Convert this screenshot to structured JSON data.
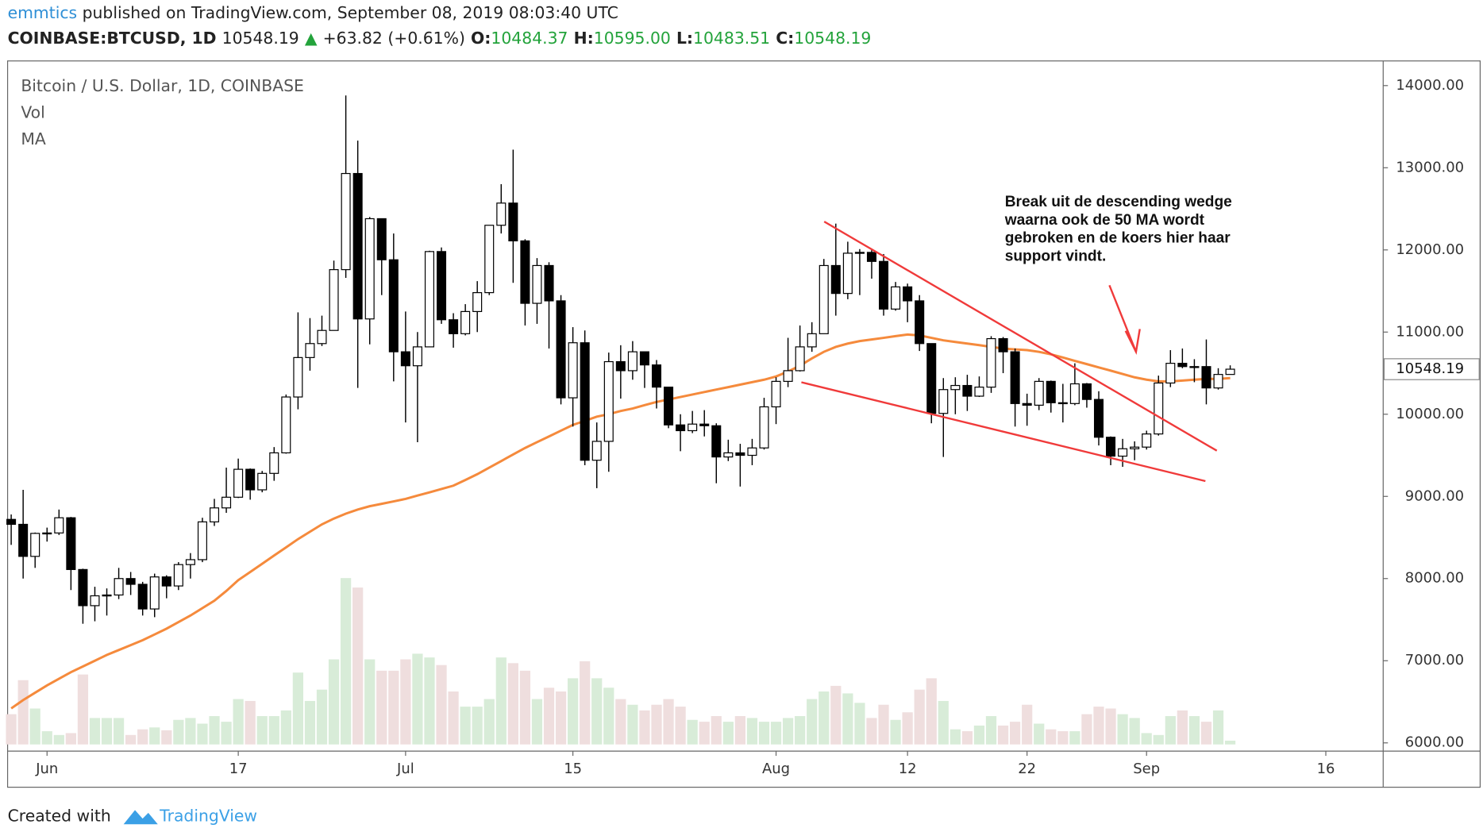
{
  "header": {
    "author": "emmtics",
    "published": "published on TradingView.com, September 08, 2019 08:03:40 UTC",
    "symbol": "COINBASE:BTCUSD, 1D",
    "last": "10548.19",
    "change": "+63.82 (+0.61%)",
    "o_label": "O:",
    "o": "10484.37",
    "h_label": "H:",
    "h": "10595.00",
    "l_label": "L:",
    "l": "10483.51",
    "c_label": "C:",
    "c": "10548.19"
  },
  "footer": {
    "created": "Created with",
    "brand": "TradingView"
  },
  "chart_data": {
    "type": "candlestick",
    "title": "Bitcoin / U.S. Dollar, 1D, COINBASE",
    "indicators": [
      "Vol",
      "MA"
    ],
    "annotation": [
      "Break uit de descending wedge",
      "waarna ook de 50 MA wordt",
      "gebroken en de koers hier haar",
      "support vindt."
    ],
    "up_color": "#ffffff",
    "down_color": "#000000",
    "volume_up_color": "#d8ecd8",
    "volume_down_color": "#efdede",
    "open": [
      8720,
      8660,
      8270,
      8550,
      8555,
      8740,
      8110,
      7670,
      7790,
      7800,
      8000,
      7930,
      7630,
      8020,
      7910,
      8170,
      8230,
      8690,
      8860,
      8990,
      9330,
      9080,
      9280,
      9530,
      10210,
      10690,
      10860,
      11020,
      11760,
      12930,
      11160,
      12380,
      11880,
      10760,
      10590,
      10820,
      11980,
      11150,
      10980,
      11250,
      11480,
      12300,
      12570,
      12110,
      11350,
      11810,
      11380,
      10200,
      10870,
      9440,
      9670,
      10640,
      10530,
      10760,
      10600,
      10330,
      9870,
      9800,
      9880,
      9860,
      9480,
      9530,
      9500,
      9590,
      10090,
      10400,
      10530,
      10820,
      10980,
      11810,
      11470,
      11960,
      11970,
      11860,
      11280,
      11550,
      11380,
      10860,
      10010,
      10300,
      10350,
      10220,
      10330,
      10920,
      10760,
      10130,
      10110,
      10400,
      10140,
      10130,
      10370,
      10180,
      9720,
      9490,
      9580,
      9600,
      9760,
      10380,
      10620,
      10580,
      10580,
      10320,
      10484.37
    ],
    "high": [
      8780,
      9080,
      8560,
      8620,
      8840,
      8750,
      8120,
      7900,
      7880,
      8130,
      8080,
      7960,
      8060,
      8040,
      8200,
      8310,
      8740,
      8970,
      9350,
      9460,
      9340,
      9310,
      9600,
      10240,
      11240,
      11170,
      11200,
      11870,
      13880,
      13330,
      12400,
      12380,
      12200,
      11250,
      11000,
      11990,
      12030,
      11230,
      11340,
      11620,
      12300,
      12800,
      13220,
      12130,
      11900,
      11850,
      11450,
      11060,
      11020,
      9900,
      10750,
      10840,
      10890,
      10760,
      10660,
      10330,
      10000,
      10040,
      10050,
      9890,
      9690,
      9640,
      9700,
      10200,
      10450,
      10930,
      11080,
      11120,
      11890,
      12320,
      12100,
      12010,
      12000,
      11950,
      11610,
      11590,
      11450,
      10860,
      10440,
      10450,
      10480,
      10460,
      10950,
      10940,
      10800,
      10250,
      10440,
      10410,
      10370,
      10620,
      10380,
      10280,
      9730,
      9700,
      9670,
      9800,
      10470,
      10780,
      10800,
      10670,
      10910,
      10560,
      10595
    ],
    "low": [
      8410,
      8000,
      8130,
      8450,
      8530,
      7860,
      7450,
      7480,
      7550,
      7750,
      7800,
      7550,
      7530,
      7760,
      7860,
      8000,
      8200,
      8640,
      8800,
      8980,
      8960,
      9050,
      9190,
      9520,
      10060,
      10530,
      10830,
      11020,
      11660,
      10320,
      10850,
      11450,
      10400,
      9900,
      9660,
      10820,
      11100,
      10810,
      10960,
      11000,
      11450,
      12200,
      11600,
      11080,
      11100,
      10800,
      10120,
      9850,
      9380,
      9100,
      9300,
      10190,
      10420,
      10320,
      10070,
      9830,
      9550,
      9770,
      9730,
      9160,
      9430,
      9120,
      9380,
      9570,
      9880,
      10330,
      10520,
      10760,
      10980,
      11200,
      11400,
      11450,
      11650,
      11200,
      11260,
      11120,
      10770,
      9890,
      9480,
      10000,
      10040,
      10210,
      10260,
      10500,
      9850,
      9860,
      10050,
      10020,
      9900,
      10110,
      10080,
      9620,
      9380,
      9360,
      9440,
      9570,
      9740,
      10330,
      10560,
      10390,
      10120,
      10300,
      10483.51
    ],
    "close": [
      8660,
      8270,
      8550,
      8555,
      8740,
      8110,
      7670,
      7790,
      7800,
      8000,
      7930,
      7630,
      8020,
      7910,
      8170,
      8230,
      8690,
      8860,
      8990,
      9330,
      9080,
      9280,
      9530,
      10210,
      10690,
      10860,
      11020,
      11760,
      12930,
      11160,
      12380,
      11880,
      10760,
      10590,
      10820,
      11980,
      11150,
      10980,
      11250,
      11480,
      12300,
      12570,
      12110,
      11350,
      11810,
      11380,
      10200,
      10870,
      9440,
      9670,
      10640,
      10530,
      10760,
      10600,
      10330,
      9870,
      9800,
      9880,
      9860,
      9480,
      9530,
      9500,
      9590,
      10090,
      10400,
      10530,
      10820,
      10980,
      11810,
      11470,
      11960,
      11970,
      11860,
      11280,
      11550,
      11380,
      10860,
      10010,
      10300,
      10350,
      10220,
      10330,
      10920,
      10760,
      10130,
      10110,
      10400,
      10140,
      10130,
      10370,
      10180,
      9720,
      9490,
      9580,
      9600,
      9760,
      10380,
      10620,
      10580,
      10580,
      10320,
      10484.37,
      10548.19
    ],
    "volume": [
      32,
      68,
      38,
      14,
      10,
      12,
      74,
      28,
      28,
      28,
      10,
      16,
      18,
      15,
      26,
      28,
      22,
      30,
      24,
      48,
      46,
      30,
      30,
      36,
      76,
      46,
      58,
      90,
      176,
      166,
      90,
      78,
      78,
      90,
      96,
      92,
      84,
      56,
      40,
      40,
      48,
      92,
      86,
      78,
      48,
      60,
      56,
      70,
      88,
      70,
      60,
      48,
      42,
      36,
      42,
      48,
      40,
      26,
      24,
      30,
      24,
      30,
      28,
      24,
      24,
      28,
      30,
      48,
      56,
      62,
      54,
      44,
      28,
      42,
      26,
      34,
      58,
      70,
      46,
      16,
      14,
      20,
      30,
      20,
      24,
      42,
      22,
      16,
      14,
      14,
      32,
      40,
      38,
      32,
      28,
      12,
      10,
      30,
      36,
      30,
      24,
      36,
      4
    ],
    "ma": {
      "name": "MA",
      "color": "#f58a3c",
      "values": [
        6420,
        6520,
        6610,
        6700,
        6780,
        6860,
        6930,
        7000,
        7070,
        7130,
        7190,
        7250,
        7320,
        7390,
        7470,
        7550,
        7640,
        7730,
        7850,
        7980,
        8080,
        8180,
        8280,
        8380,
        8480,
        8570,
        8660,
        8730,
        8790,
        8840,
        8880,
        8910,
        8940,
        8970,
        9010,
        9050,
        9090,
        9130,
        9200,
        9270,
        9350,
        9430,
        9510,
        9590,
        9660,
        9730,
        9800,
        9870,
        9920,
        9970,
        10000,
        10040,
        10070,
        10110,
        10150,
        10180,
        10210,
        10240,
        10270,
        10300,
        10330,
        10360,
        10390,
        10420,
        10460,
        10520,
        10590,
        10680,
        10760,
        10820,
        10860,
        10890,
        10910,
        10930,
        10950,
        10970,
        10960,
        10930,
        10900,
        10880,
        10860,
        10840,
        10820,
        10800,
        10790,
        10780,
        10760,
        10730,
        10690,
        10650,
        10610,
        10570,
        10530,
        10490,
        10450,
        10420,
        10400,
        10400,
        10410,
        10420,
        10430,
        10430,
        10440
      ]
    },
    "xlim": [
      -0.3,
      114.8
    ],
    "xticks": [
      {
        "value": 3,
        "label": "Jun"
      },
      {
        "value": 19,
        "label": "17"
      },
      {
        "value": 33,
        "label": "Jul"
      },
      {
        "value": 47,
        "label": "15"
      },
      {
        "value": 64,
        "label": "Aug"
      },
      {
        "value": 75,
        "label": "12"
      },
      {
        "value": 85,
        "label": "22"
      },
      {
        "value": 95,
        "label": "Sep"
      },
      {
        "value": 110,
        "label": "16"
      }
    ],
    "ylim": [
      5900,
      14300
    ],
    "yticks": [
      {
        "value": 6000,
        "label": "6000.00"
      },
      {
        "value": 7000,
        "label": "7000.00"
      },
      {
        "value": 8000,
        "label": "8000.00"
      },
      {
        "value": 9000,
        "label": "9000.00"
      },
      {
        "value": 10000,
        "label": "10000.00"
      },
      {
        "value": 11000,
        "label": "11000.00"
      },
      {
        "value": 12000,
        "label": "12000.00"
      },
      {
        "value": 13000,
        "label": "13000.00"
      },
      {
        "value": 14000,
        "label": "14000.00"
      }
    ]
  }
}
